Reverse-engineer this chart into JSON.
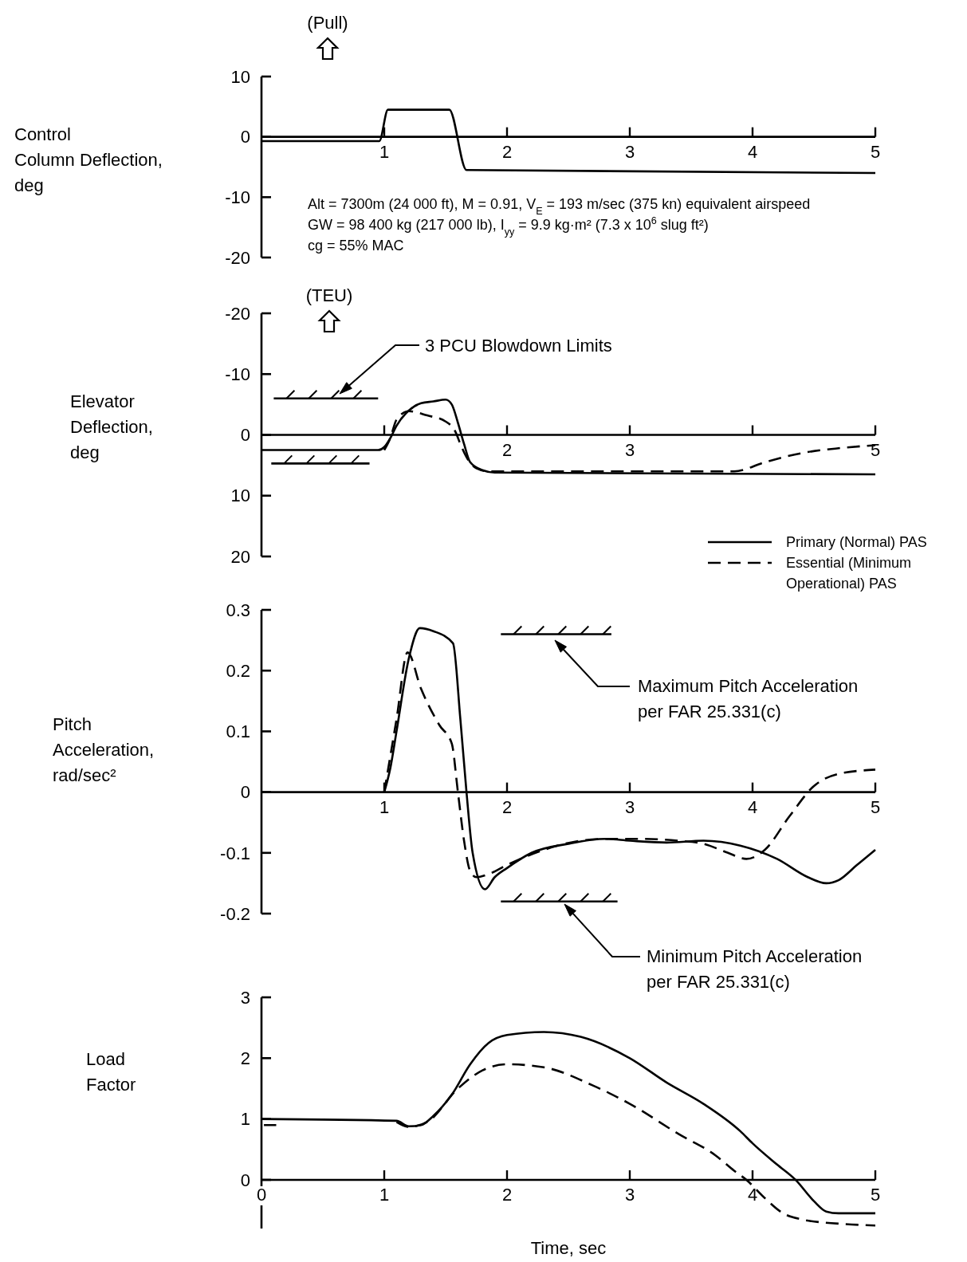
{
  "chart_data": [
    {
      "type": "line",
      "ylabel": "Control\nColumn Deflection,\ndeg",
      "xlim": [
        0,
        5
      ],
      "xticks": [
        1,
        2,
        3,
        4,
        5
      ],
      "ylim": [
        -20,
        10
      ],
      "yticks": [
        -20,
        -10,
        0,
        10
      ],
      "annotations": [
        "(Pull)",
        "Alt = 7300m  (24 000 ft), M = 0.91, V$_{E}$ = 193 m/sec (375 kn) equivalent airspeed",
        "GW = 98 400 kg (217 000 lb), I$_{yy}$ = 9.9 kg·m² (7.3 x 10$^{6}$ slug ft²)",
        "cg = 55% MAC"
      ],
      "series": [
        {
          "color": "#000000",
          "line_style": "solid",
          "x": [
            0,
            0.96,
            1.03,
            1.53,
            1.67,
            5
          ],
          "values": [
            -0.7,
            -0.7,
            4.5,
            4.5,
            -5.5,
            -6
          ]
        }
      ]
    },
    {
      "type": "line",
      "ylabel": "Elevator\nDeflection,\ndeg",
      "xlim": [
        0,
        5
      ],
      "xticks": [
        {
          "value": 1,
          "label": null
        },
        2,
        3,
        {
          "value": 4,
          "label": null
        },
        5
      ],
      "ylim": [
        20,
        -20
      ],
      "yticks": [
        -20,
        -10,
        0,
        10,
        20
      ],
      "legend": "bottom right",
      "annotations": [
        "(TEU)",
        "3 PCU Blowdown Limits"
      ],
      "series": [
        {
          "name": "Primary (Normal) PAS",
          "color": "#000000",
          "line_style": "solid",
          "x": [
            0,
            0.95,
            1.0,
            1.05,
            1.1,
            1.2,
            1.3,
            1.4,
            1.5,
            1.55,
            1.6,
            1.65,
            1.7,
            1.8,
            1.9,
            5
          ],
          "values": [
            2.5,
            2.5,
            2.0,
            0.5,
            -1.5,
            -4,
            -5.2,
            -5.5,
            -5.8,
            -5,
            -2,
            1.5,
            4.5,
            5.8,
            6.2,
            6.5
          ]
        },
        {
          "name": "Essential (Minimum Operational) PAS",
          "color": "#000000",
          "line_style": "dashed",
          "x": [
            1.0,
            1.05,
            1.1,
            1.2,
            1.35,
            1.5,
            1.58,
            1.62,
            1.68,
            1.75,
            1.85,
            3.85,
            4.1,
            4.4,
            4.7,
            5
          ],
          "values": [
            2.5,
            0.5,
            -2.5,
            -3.9,
            -3.2,
            -2.2,
            -0.5,
            1.5,
            4,
            5.5,
            6,
            6,
            4.5,
            3,
            2.2,
            1.7
          ]
        },
        {
          "color": "#000000",
          "line_style": "solid",
          "x": [
            0.1,
            0.95
          ],
          "values": [
            -6,
            -6
          ]
        },
        {
          "color": "#000000",
          "line_style": "solid",
          "x": [
            0.08,
            0.88
          ],
          "values": [
            4.7,
            4.7
          ]
        }
      ]
    },
    {
      "type": "line",
      "ylabel": "Pitch\nAcceleration,\nrad/sec²",
      "xlim": [
        0,
        5
      ],
      "xticks": [
        1,
        2,
        3,
        4,
        5
      ],
      "ylim": [
        -0.2,
        0.3
      ],
      "yticks": [
        -0.2,
        -0.1,
        0,
        0.1,
        0.2,
        0.3
      ],
      "annotations": [
        "Maximum Pitch Acceleration per FAR 25.331(c)",
        "Minimum Pitch Acceleration per FAR 25.331(c)"
      ],
      "series": [
        {
          "color": "#000000",
          "line_style": "solid",
          "x": [
            1.0,
            1.05,
            1.1,
            1.2,
            1.29,
            1.4,
            1.56,
            1.62,
            1.67,
            1.72,
            1.82,
            1.9,
            2.0,
            2.2,
            2.5,
            2.8,
            3.0,
            3.3,
            3.6,
            3.9,
            4.2,
            4.45,
            4.6,
            4.7,
            4.85,
            5.0
          ],
          "values": [
            0,
            0.04,
            0.1,
            0.22,
            0.27,
            0.265,
            0.245,
            0.12,
            0,
            -0.1,
            -0.16,
            -0.14,
            -0.125,
            -0.1,
            -0.085,
            -0.077,
            -0.08,
            -0.083,
            -0.08,
            -0.088,
            -0.11,
            -0.14,
            -0.15,
            -0.145,
            -0.12,
            -0.095
          ]
        },
        {
          "color": "#000000",
          "line_style": "dashed",
          "x": [
            1.0,
            1.1,
            1.19,
            1.3,
            1.45,
            1.55,
            1.6,
            1.65,
            1.7,
            1.75,
            1.85,
            2.0,
            2.3,
            2.6,
            2.8,
            3.1,
            3.4,
            3.6,
            3.8,
            3.95,
            4.1,
            4.3,
            4.5,
            4.7,
            5.0
          ],
          "values": [
            0,
            0.12,
            0.23,
            0.17,
            0.11,
            0.08,
            0,
            -0.08,
            -0.13,
            -0.14,
            -0.135,
            -0.12,
            -0.095,
            -0.08,
            -0.077,
            -0.077,
            -0.08,
            -0.085,
            -0.1,
            -0.11,
            -0.095,
            -0.04,
            0.01,
            0.03,
            0.037
          ]
        },
        {
          "color": "#000000",
          "line_style": "solid",
          "x": [
            1.95,
            2.85
          ],
          "values": [
            0.26,
            0.26
          ]
        },
        {
          "color": "#000000",
          "line_style": "solid",
          "x": [
            1.95,
            2.9
          ],
          "values": [
            -0.18,
            -0.18
          ]
        }
      ]
    },
    {
      "type": "line",
      "ylabel": "Load\nFactor",
      "xlabel": "Time, sec",
      "xlim": [
        0,
        5
      ],
      "xticks": [
        0,
        1,
        2,
        3,
        4,
        5
      ],
      "ylim": [
        -0.8,
        3
      ],
      "yticks": [
        0,
        1,
        2,
        3
      ],
      "series": [
        {
          "color": "#000000",
          "line_style": "solid",
          "x": [
            0,
            1.1,
            1.2,
            1.3,
            1.4,
            1.55,
            1.7,
            1.85,
            2.0,
            2.3,
            2.6,
            3.0,
            3.3,
            3.6,
            3.9,
            4.0,
            4.2,
            4.35,
            4.5,
            4.6,
            4.7,
            5.0
          ],
          "values": [
            1.0,
            0.97,
            0.88,
            0.9,
            1.05,
            1.4,
            1.9,
            2.25,
            2.38,
            2.43,
            2.35,
            2.0,
            1.6,
            1.25,
            0.8,
            0.6,
            0.25,
            0,
            -0.35,
            -0.52,
            -0.55,
            -0.55
          ]
        },
        {
          "color": "#000000",
          "line_style": "dashed",
          "x": [
            0.02,
            0.12,
            0.13,
            1.1,
            1.2,
            1.35,
            1.6,
            1.8,
            2.0,
            2.3,
            2.7,
            3.0,
            3.4,
            3.7,
            3.85,
            3.95,
            4.1,
            4.25,
            4.4,
            4.7,
            5.0
          ],
          "values": [
            0.9,
            0.9,
            null,
            0.95,
            0.87,
            0.95,
            1.5,
            1.8,
            1.9,
            1.85,
            1.55,
            1.25,
            0.75,
            0.4,
            0.15,
            0,
            -0.3,
            -0.55,
            -0.65,
            -0.72,
            -0.75
          ]
        }
      ]
    }
  ]
}
